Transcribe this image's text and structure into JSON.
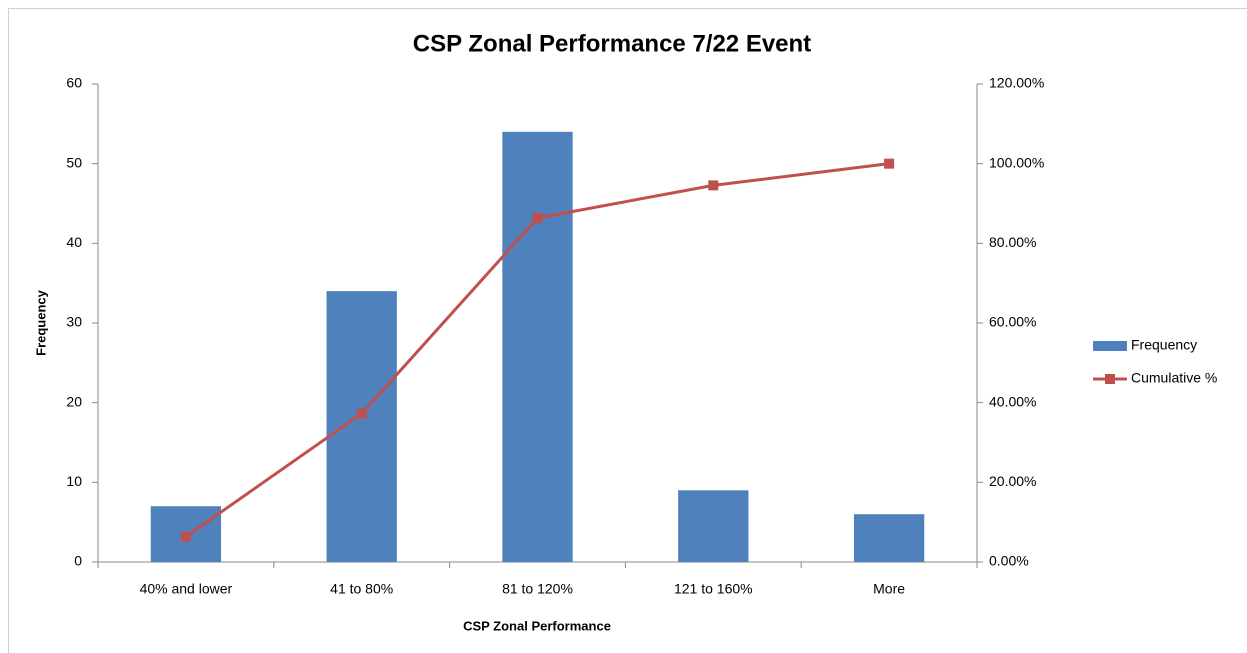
{
  "chart_data": {
    "type": "bar",
    "title": "CSP Zonal Performance 7/22 Event",
    "x_label": "CSP Zonal Performance",
    "y_label": "Frequency",
    "categories": [
      "40% and lower",
      "41 to 80%",
      "81 to 120%",
      "121 to 160%",
      "More"
    ],
    "series": [
      {
        "name": "Frequency",
        "type": "bar",
        "color": "#4f81bd",
        "values": [
          7,
          34,
          54,
          9,
          6
        ]
      },
      {
        "name": "Cumulative %",
        "type": "line",
        "axis": "y2",
        "color": "#c0504d",
        "values": [
          6.36,
          37.27,
          86.36,
          94.55,
          100
        ]
      }
    ],
    "ylim": [
      0,
      60
    ],
    "yticks": [
      0,
      10,
      20,
      30,
      40,
      50,
      60
    ],
    "y2lim": [
      0,
      120
    ],
    "y2ticks": [
      {
        "value": 0,
        "label": "0.00%"
      },
      {
        "value": 20,
        "label": "20.00%"
      },
      {
        "value": 40,
        "label": "40.00%"
      },
      {
        "value": 60,
        "label": "60.00%"
      },
      {
        "value": 80,
        "label": "80.00%"
      },
      {
        "value": 100,
        "label": "100.00%"
      },
      {
        "value": 120,
        "label": "120.00%"
      }
    ],
    "grid": false,
    "legend": "right"
  }
}
